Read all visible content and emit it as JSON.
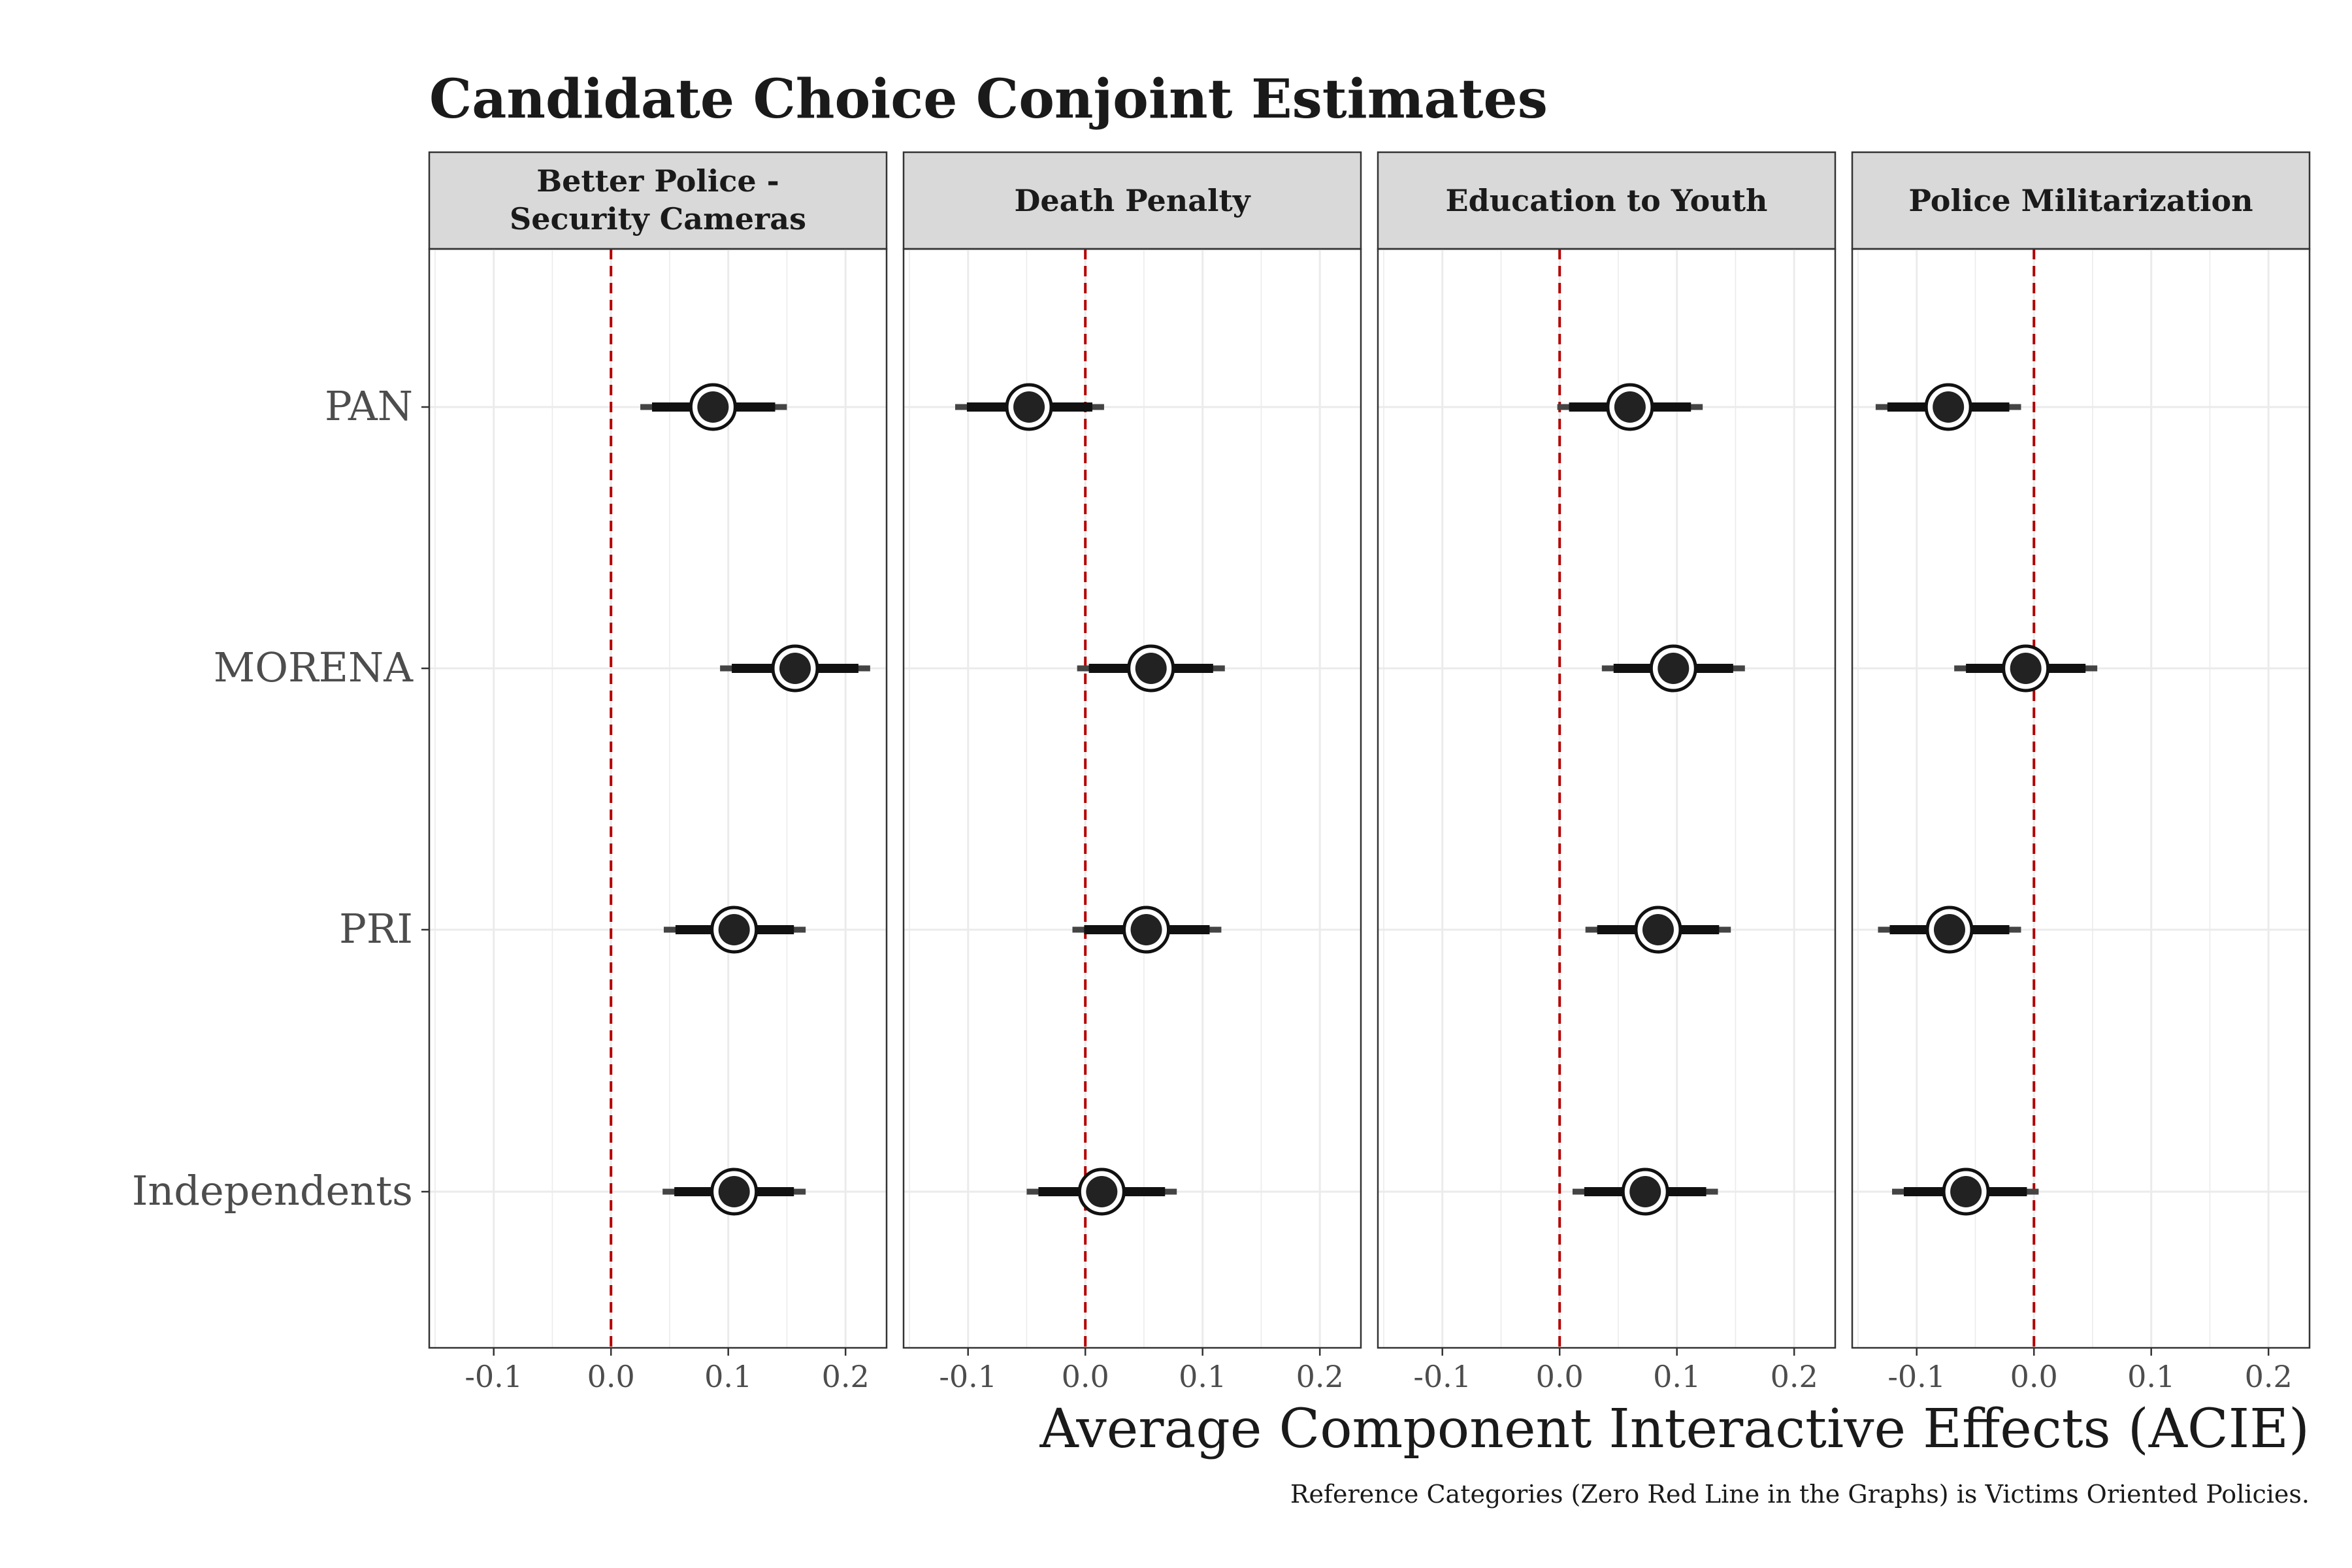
{
  "chart_data": {
    "type": "scatter",
    "title": "Candidate Choice Conjoint Estimates",
    "xlabel": "Average Component Interactive Effects (ACIE)",
    "caption": "Reference Categories (Zero Red Line in the Graphs) is Victims Oriented Policies.",
    "ylabel": "",
    "xlim": [
      -0.155,
      0.235
    ],
    "x_ticks": [
      -0.1,
      0.0,
      0.1,
      0.2
    ],
    "x_tick_labels": [
      "-0.1",
      "0.0",
      "0.1",
      "0.2"
    ],
    "reference_line": {
      "x": 0,
      "style": "dashed",
      "color": "#b30000"
    },
    "grid": true,
    "categories": [
      "PAN",
      "MORENA",
      "PRI",
      "Independents"
    ],
    "colors": {
      "point": "#111111",
      "strip_fill": "#d9d9d9",
      "grid": "#ebebeb",
      "reference": "#b30000"
    },
    "panels": [
      {
        "name": "Better Police - Security Cameras",
        "strip_lines": [
          "Better Police -",
          "Security Cameras"
        ],
        "estimates": [
          0.087,
          0.157,
          0.105,
          0.105
        ],
        "ci95": [
          [
            0.025,
            0.15
          ],
          [
            0.093,
            0.221
          ],
          [
            0.045,
            0.166
          ],
          [
            0.044,
            0.166
          ]
        ],
        "ci90": [
          [
            0.035,
            0.14
          ],
          [
            0.103,
            0.211
          ],
          [
            0.055,
            0.156
          ],
          [
            0.054,
            0.156
          ]
        ]
      },
      {
        "name": "Death Penalty",
        "strip_lines": [
          "Death Penalty"
        ],
        "estimates": [
          -0.048,
          0.056,
          0.052,
          0.014
        ],
        "ci95": [
          [
            -0.111,
            0.016
          ],
          [
            -0.007,
            0.119
          ],
          [
            -0.011,
            0.116
          ],
          [
            -0.05,
            0.078
          ]
        ],
        "ci90": [
          [
            -0.101,
            0.006
          ],
          [
            0.003,
            0.109
          ],
          [
            -0.001,
            0.106
          ],
          [
            -0.04,
            0.068
          ]
        ]
      },
      {
        "name": "Education to Youth",
        "strip_lines": [
          "Education to Youth"
        ],
        "estimates": [
          0.06,
          0.097,
          0.084,
          0.073
        ],
        "ci95": [
          [
            -0.002,
            0.122
          ],
          [
            0.036,
            0.158
          ],
          [
            0.022,
            0.146
          ],
          [
            0.011,
            0.135
          ]
        ],
        "ci90": [
          [
            0.008,
            0.112
          ],
          [
            0.046,
            0.148
          ],
          [
            0.032,
            0.136
          ],
          [
            0.021,
            0.125
          ]
        ]
      },
      {
        "name": "Police Militarization",
        "strip_lines": [
          "Police Militarization"
        ],
        "estimates": [
          -0.073,
          -0.007,
          -0.072,
          -0.058
        ],
        "ci95": [
          [
            -0.135,
            -0.011
          ],
          [
            -0.068,
            0.054
          ],
          [
            -0.133,
            -0.011
          ],
          [
            -0.121,
            0.004
          ]
        ],
        "ci90": [
          [
            -0.125,
            -0.021
          ],
          [
            -0.058,
            0.044
          ],
          [
            -0.123,
            -0.021
          ],
          [
            -0.111,
            -0.006
          ]
        ]
      }
    ]
  }
}
